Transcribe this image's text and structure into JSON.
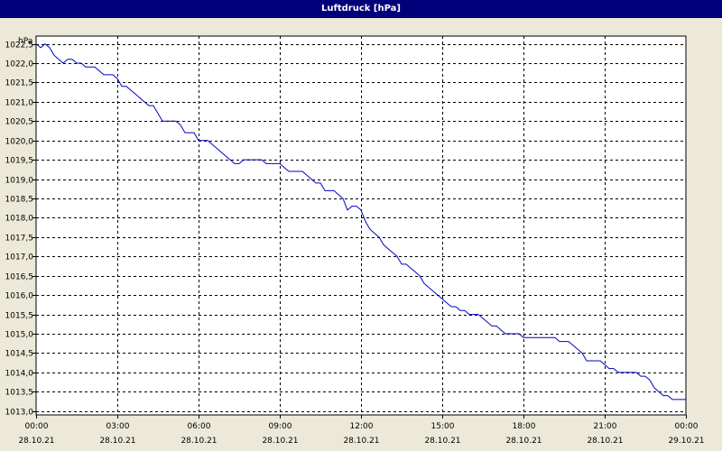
{
  "window": {
    "title": "Luftdruck [hPa]"
  },
  "chart_data": {
    "type": "line",
    "title": "Luftdruck [hPa]",
    "ylabel": "hPa",
    "xlabel": "",
    "ylim": [
      1012.9,
      1022.7
    ],
    "xlim": [
      0,
      24
    ],
    "grid": true,
    "y_ticks": [
      "1013,0",
      "1013,5",
      "1014,0",
      "1014,5",
      "1015,0",
      "1015,5",
      "1016,0",
      "1016,5",
      "1017,0",
      "1017,5",
      "1018,0",
      "1018,5",
      "1019,0",
      "1019,5",
      "1020,0",
      "1020,5",
      "1021,0",
      "1021,5",
      "1022,0",
      "1022,5"
    ],
    "x_ticks": [
      {
        "time": "00:00",
        "date": "28.10.21"
      },
      {
        "time": "03:00",
        "date": "28.10.21"
      },
      {
        "time": "06:00",
        "date": "28.10.21"
      },
      {
        "time": "09:00",
        "date": "28.10.21"
      },
      {
        "time": "12:00",
        "date": "28.10.21"
      },
      {
        "time": "15:00",
        "date": "28.10.21"
      },
      {
        "time": "18:00",
        "date": "28.10.21"
      },
      {
        "time": "21:00",
        "date": "28.10.21"
      },
      {
        "time": "00:00",
        "date": "29.10.21"
      }
    ],
    "colors": {
      "line": "#0000c8",
      "grid": "#000000",
      "background": "#ffffff"
    },
    "series": [
      {
        "x": [
          "00:00",
          "00:10",
          "00:20",
          "00:30",
          "00:40",
          "00:50",
          "01:00",
          "01:10",
          "01:20",
          "01:30",
          "01:40",
          "01:50",
          "02:00",
          "02:10",
          "02:20",
          "02:30",
          "02:40",
          "02:50",
          "03:00",
          "03:10",
          "03:20",
          "03:30",
          "03:40",
          "03:50",
          "04:00",
          "04:10",
          "04:20",
          "04:30",
          "04:40",
          "04:50",
          "05:00",
          "05:10",
          "05:20",
          "05:30",
          "05:40",
          "05:50",
          "06:00",
          "06:10",
          "06:20",
          "06:30",
          "06:40",
          "06:50",
          "07:00",
          "07:10",
          "07:20",
          "07:30",
          "07:40",
          "07:50",
          "08:00",
          "08:10",
          "08:20",
          "08:30",
          "08:40",
          "08:50",
          "09:00",
          "09:10",
          "09:20",
          "09:30",
          "09:40",
          "09:50",
          "10:00",
          "10:10",
          "10:20",
          "10:30",
          "10:40",
          "10:50",
          "11:00",
          "11:10",
          "11:20",
          "11:30",
          "11:40",
          "11:50",
          "12:00",
          "12:10",
          "12:20",
          "12:30",
          "12:40",
          "12:50",
          "13:00",
          "13:10",
          "13:20",
          "13:30",
          "13:40",
          "13:50",
          "14:00",
          "14:10",
          "14:20",
          "14:30",
          "14:40",
          "14:50",
          "15:00",
          "15:10",
          "15:20",
          "15:30",
          "15:40",
          "15:50",
          "16:00",
          "16:10",
          "16:20",
          "16:30",
          "16:40",
          "16:50",
          "17:00",
          "17:10",
          "17:20",
          "17:30",
          "17:40",
          "17:50",
          "18:00",
          "18:10",
          "18:20",
          "18:30",
          "18:40",
          "18:50",
          "19:00",
          "19:10",
          "19:20",
          "19:30",
          "19:40",
          "19:50",
          "20:00",
          "20:10",
          "20:20",
          "20:30",
          "20:40",
          "20:50",
          "21:00",
          "21:10",
          "21:20",
          "21:30",
          "21:40",
          "21:50",
          "22:00",
          "22:10",
          "22:20",
          "22:30",
          "22:40",
          "22:50",
          "23:00",
          "23:10",
          "23:20",
          "23:30",
          "23:40",
          "23:50",
          "24:00"
        ],
        "values": [
          1022.5,
          1022.4,
          1022.5,
          1022.4,
          1022.2,
          1022.1,
          1022.0,
          1022.1,
          1022.1,
          1022.0,
          1022.0,
          1021.9,
          1021.9,
          1021.9,
          1021.8,
          1021.7,
          1021.7,
          1021.7,
          1021.6,
          1021.4,
          1021.4,
          1021.3,
          1021.2,
          1021.1,
          1021.0,
          1020.9,
          1020.9,
          1020.7,
          1020.5,
          1020.5,
          1020.5,
          1020.5,
          1020.4,
          1020.2,
          1020.2,
          1020.2,
          1020.0,
          1020.0,
          1020.0,
          1019.9,
          1019.8,
          1019.7,
          1019.6,
          1019.5,
          1019.4,
          1019.4,
          1019.5,
          1019.5,
          1019.5,
          1019.5,
          1019.5,
          1019.4,
          1019.4,
          1019.4,
          1019.4,
          1019.3,
          1019.2,
          1019.2,
          1019.2,
          1019.2,
          1019.1,
          1019.0,
          1018.9,
          1018.9,
          1018.7,
          1018.7,
          1018.7,
          1018.6,
          1018.5,
          1018.2,
          1018.3,
          1018.3,
          1018.2,
          1017.9,
          1017.7,
          1017.6,
          1017.5,
          1017.3,
          1017.2,
          1017.1,
          1017.0,
          1016.8,
          1016.8,
          1016.7,
          1016.6,
          1016.5,
          1016.3,
          1016.2,
          1016.1,
          1016.0,
          1015.9,
          1015.8,
          1015.7,
          1015.7,
          1015.6,
          1015.6,
          1015.5,
          1015.5,
          1015.5,
          1015.4,
          1015.3,
          1015.2,
          1015.2,
          1015.1,
          1015.0,
          1015.0,
          1015.0,
          1015.0,
          1014.9,
          1014.9,
          1014.9,
          1014.9,
          1014.9,
          1014.9,
          1014.9,
          1014.9,
          1014.8,
          1014.8,
          1014.8,
          1014.7,
          1014.6,
          1014.5,
          1014.3,
          1014.3,
          1014.3,
          1014.3,
          1014.2,
          1014.1,
          1014.1,
          1014.0,
          1014.0,
          1014.0,
          1014.0,
          1014.0,
          1013.9,
          1013.9,
          1013.8,
          1013.6,
          1013.5,
          1013.4,
          1013.4,
          1013.3,
          1013.3,
          1013.3,
          1013.3
        ]
      }
    ]
  }
}
